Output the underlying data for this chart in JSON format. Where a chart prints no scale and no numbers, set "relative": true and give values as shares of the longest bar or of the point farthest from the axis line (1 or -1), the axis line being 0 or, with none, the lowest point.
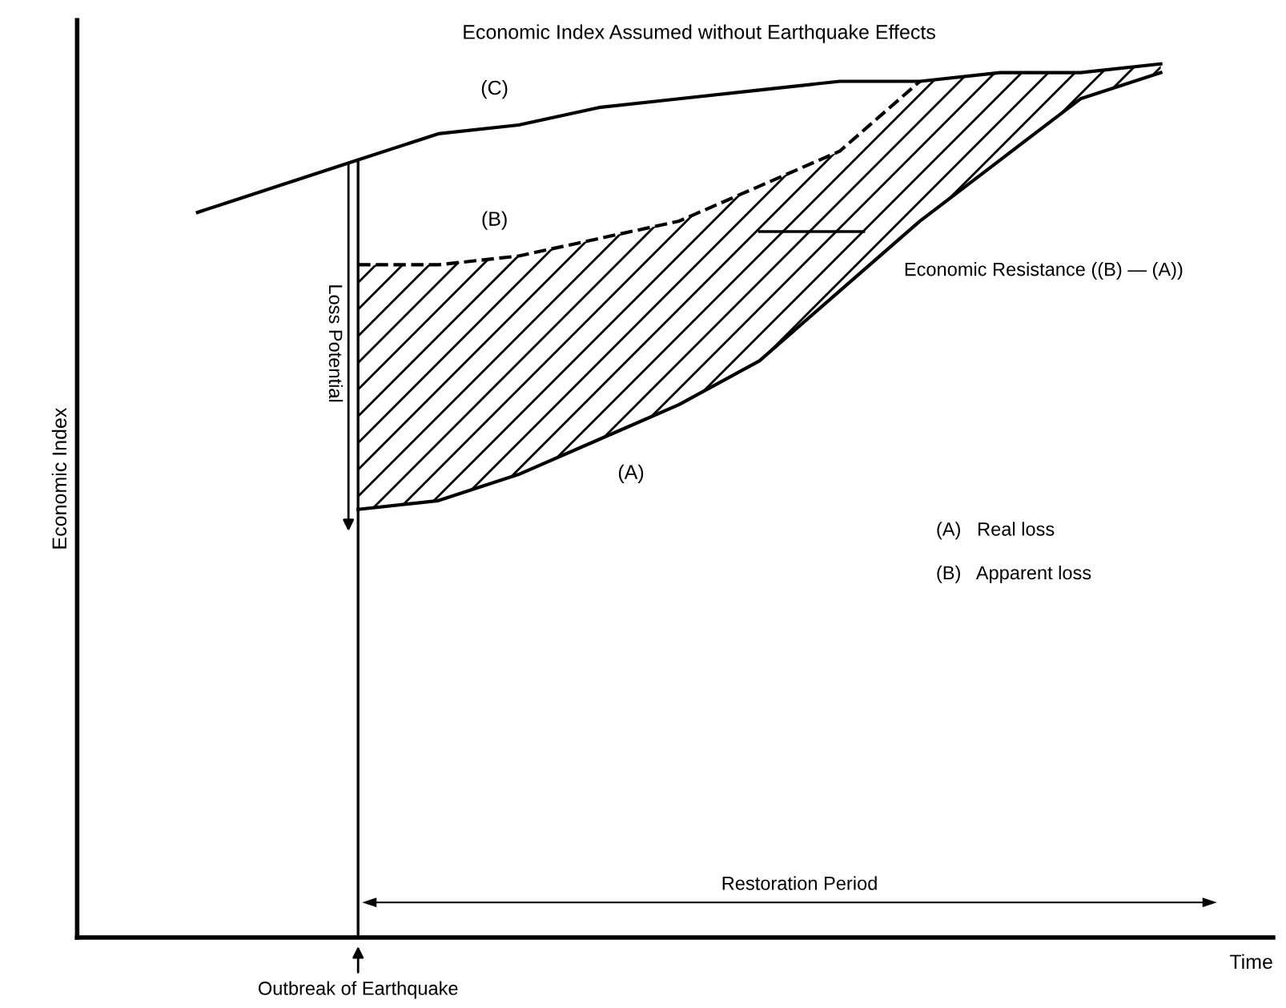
{
  "chart_data": {
    "type": "line",
    "relative": true,
    "title": "Economic Index Assumed without Earthquake Effects",
    "xlabel": "Time",
    "ylabel": "Economic Index",
    "categories": [
      null,
      null,
      null,
      null,
      null,
      null,
      null,
      null,
      null,
      null,
      null,
      null,
      null
    ],
    "series": [
      {
        "name": "(C)",
        "color": "#000000",
        "line_style": "solid",
        "values": [
          0.83,
          0.86,
          0.89,
          0.92,
          0.93,
          0.95,
          0.96,
          0.97,
          0.98,
          0.98,
          0.99,
          0.99,
          1.0
        ]
      },
      {
        "name": "(B)",
        "color": "#000000",
        "line_style": "dashed",
        "values": [
          null,
          null,
          0.77,
          0.77,
          0.78,
          0.8,
          0.82,
          0.86,
          0.9,
          0.98,
          null,
          null,
          null
        ]
      },
      {
        "name": "(A)",
        "color": "#000000",
        "line_style": "solid",
        "values": [
          null,
          null,
          0.49,
          0.5,
          0.53,
          0.57,
          0.61,
          0.66,
          0.74,
          0.82,
          0.89,
          0.96,
          0.99
        ]
      }
    ],
    "annotations": [
      "Economic Resistance ((B) — (A))",
      "Loss Potential",
      "Restoration Period",
      "Outbreak of Earthquake",
      "(A)   Real loss",
      "(B)   Apparent loss"
    ]
  }
}
